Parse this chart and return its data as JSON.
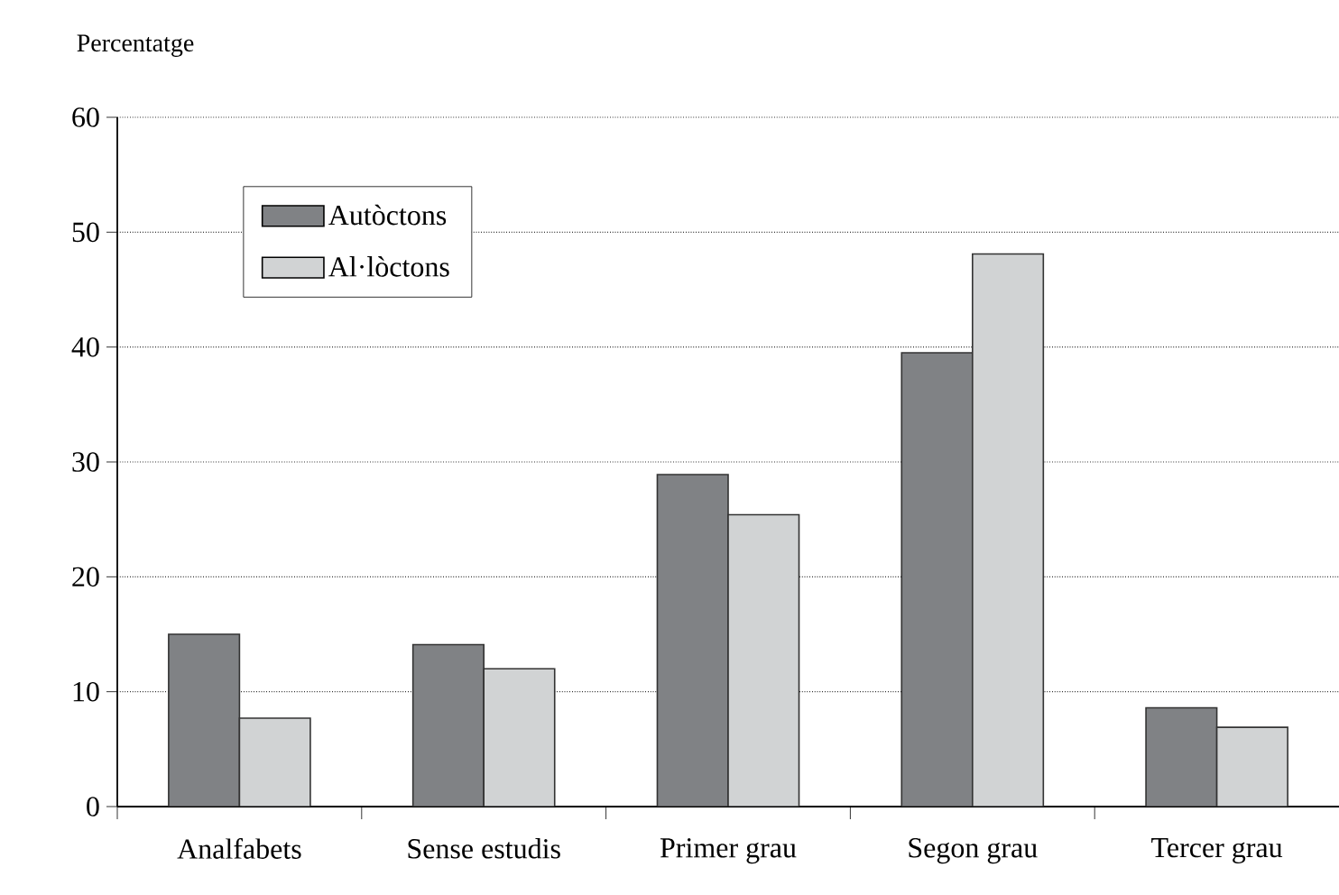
{
  "chart_data": {
    "type": "bar",
    "ylabel": "Percentatge",
    "categories": [
      "Analfabets",
      "Sense estudis",
      "Primer grau",
      "Segon grau",
      "Tercer grau"
    ],
    "series": [
      {
        "name": "Autòctons",
        "color": "#808285",
        "values": [
          15.0,
          14.1,
          28.9,
          39.5,
          8.6
        ]
      },
      {
        "name": "Al·lòctons",
        "color": "#d1d3d4",
        "values": [
          7.7,
          12.0,
          25.4,
          48.1,
          6.9
        ]
      }
    ],
    "ylim": [
      0,
      60
    ],
    "yticks": [
      0,
      10,
      20,
      30,
      40,
      50,
      60
    ],
    "grid": "y",
    "legend": "top left"
  }
}
